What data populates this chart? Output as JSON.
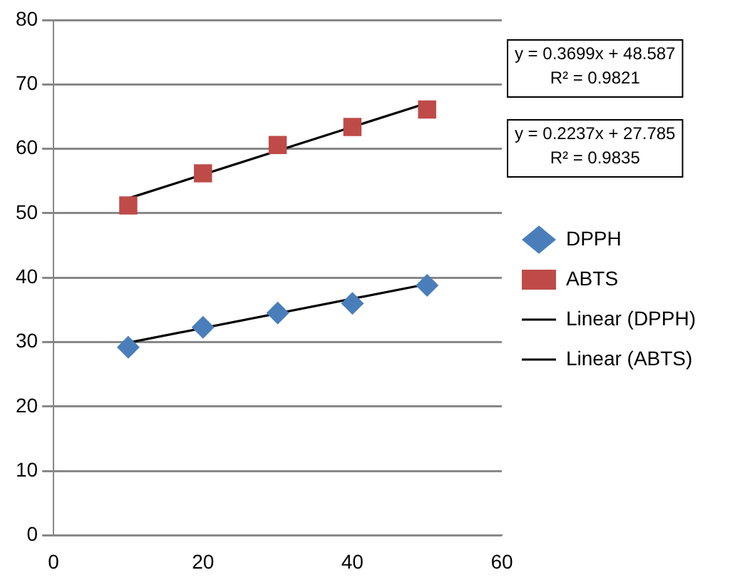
{
  "chart_data": {
    "type": "scatter",
    "xlim": [
      0,
      60
    ],
    "xticks": [
      0,
      20,
      40,
      60
    ],
    "ylim": [
      0,
      80
    ],
    "yticks": [
      0,
      10,
      20,
      30,
      40,
      50,
      60,
      70,
      80
    ],
    "grid": "y",
    "legend": "right",
    "series": [
      {
        "name": "DPPH",
        "color": "#4a7ebb",
        "marker": "diamond",
        "x": [
          10,
          20,
          30,
          40,
          50
        ],
        "values": [
          29.2,
          32.3,
          34.5,
          36.0,
          38.8
        ]
      },
      {
        "name": "ABTS",
        "color": "#be4b48",
        "marker": "square",
        "x": [
          10,
          20,
          30,
          40,
          50
        ],
        "values": [
          51.2,
          56.2,
          60.6,
          63.4,
          66.1
        ]
      },
      {
        "name": "Linear (DPPH)",
        "type": "line",
        "color": "#000000",
        "marker": "none",
        "x": [
          10,
          50
        ],
        "values": [
          29.9,
          39.0
        ]
      },
      {
        "name": "Linear (ABTS)",
        "type": "line",
        "color": "#000000",
        "marker": "none",
        "x": [
          10,
          50
        ],
        "values": [
          52.3,
          67.1
        ]
      }
    ],
    "annotations": [
      "y = 0.3699x + 48.587\nR² = 0.9821",
      "y = 0.2237x + 27.785\nR² = 0.9835"
    ]
  }
}
